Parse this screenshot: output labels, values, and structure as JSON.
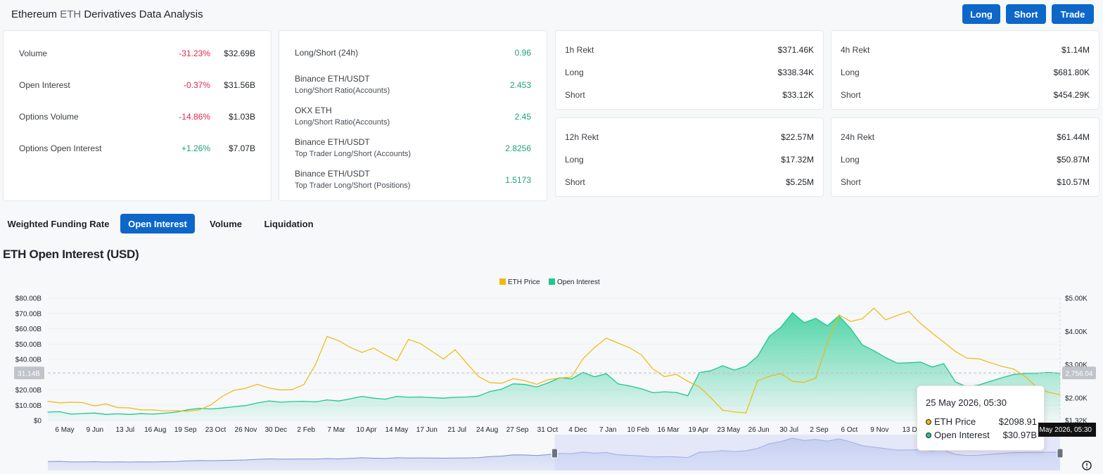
{
  "header": {
    "title_prefix": "Ethereum",
    "title_symbol": "ETH",
    "title_suffix": "Derivatives Data Analysis",
    "buttons": {
      "long": "Long",
      "short": "Short",
      "trade": "Trade"
    }
  },
  "summary": [
    {
      "label": "Volume",
      "change": "-31.23%",
      "value": "$32.69B",
      "direction": "neg"
    },
    {
      "label": "Open Interest",
      "change": "-0.37%",
      "value": "$31.56B",
      "direction": "neg"
    },
    {
      "label": "Options Volume",
      "change": "-14.86%",
      "value": "$1.03B",
      "direction": "neg"
    },
    {
      "label": "Options Open Interest",
      "change": "+1.26%",
      "value": "$7.07B",
      "direction": "pos"
    }
  ],
  "long_short": {
    "top_label": "Long/Short (24h)",
    "top_value": "0.96",
    "rows": [
      {
        "line1": "Binance ETH/USDT",
        "line2": "Long/Short Ratio(Accounts)",
        "value": "2.453"
      },
      {
        "line1": "OKX ETH",
        "line2": "Long/Short Ratio(Accounts)",
        "value": "2.45"
      },
      {
        "line1": "Binance ETH/USDT",
        "line2": "Top Trader Long/Short (Accounts)",
        "value": "2.8256"
      },
      {
        "line1": "Binance ETH/USDT",
        "line2": "Top Trader Long/Short (Positions)",
        "value": "1.5173"
      }
    ]
  },
  "rekt": {
    "h1": {
      "title": "1h Rekt",
      "total": "$371.46K",
      "long_label": "Long",
      "long": "$338.34K",
      "short_label": "Short",
      "short": "$33.12K"
    },
    "h4": {
      "title": "4h Rekt",
      "total": "$1.14M",
      "long_label": "Long",
      "long": "$681.80K",
      "short_label": "Short",
      "short": "$454.29K"
    },
    "h12": {
      "title": "12h Rekt",
      "total": "$22.57M",
      "long_label": "Long",
      "long": "$17.32M",
      "short_label": "Short",
      "short": "$5.25M"
    },
    "h24": {
      "title": "24h Rekt",
      "total": "$61.44M",
      "long_label": "Long",
      "long": "$50.87M",
      "short_label": "Short",
      "short": "$10.57M"
    }
  },
  "tabs": [
    "Weighted Funding Rate",
    "Open Interest",
    "Volume",
    "Liquidation"
  ],
  "active_tab": "Open Interest",
  "chart_heading": "ETH Open Interest (USD)",
  "chart_data": {
    "type": "area",
    "title": "ETH Open Interest (USD)",
    "legend": [
      "ETH Price",
      "Open Interest"
    ],
    "legend_position": "top-center",
    "colors": {
      "eth_price": "#f0b90b",
      "open_interest": "#1cc98d"
    },
    "x_ticks": [
      "6 May",
      "9 Jun",
      "13 Jul",
      "16 Aug",
      "19 Sep",
      "23 Oct",
      "26 Nov",
      "30 Dec",
      "2 Feb",
      "7 Mar",
      "10 Apr",
      "14 May",
      "17 Jun",
      "21 Jul",
      "24 Aug",
      "27 Sep",
      "31 Oct",
      "4 Dec",
      "7 Jan",
      "10 Feb",
      "16 Mar",
      "19 Apr",
      "23 May",
      "26 Jun",
      "30 Jul",
      "2 Sep",
      "6 Oct",
      "9 Nov",
      "13 D"
    ],
    "y_left_ticks": [
      "$0",
      "$10.00B",
      "$20.00B",
      "$30.00B",
      "$40.00B",
      "$50.00B",
      "$60.00B",
      "$70.00B",
      "$80.00B"
    ],
    "y_right_ticks": [
      "$1.32K",
      "$2.00K",
      "$3.00K",
      "$4.00K",
      "$5.00K"
    ],
    "ylim_left": [
      0,
      80
    ],
    "ylim_right": [
      1320,
      5000
    ],
    "crosshair_left_label": "31.14B",
    "crosshair_right_label": "2,756.04",
    "crosshair_x_label": "May 2026, 05:30",
    "series": [
      {
        "name": "Open Interest",
        "unit": "B USD",
        "values": [
          5.5,
          5.8,
          4.2,
          4.6,
          4.9,
          4.0,
          4.4,
          4.0,
          4.5,
          4.2,
          4.8,
          5.5,
          7.0,
          8.0,
          7.6,
          8.2,
          9.0,
          9.8,
          11.5,
          12.8,
          12.0,
          12.4,
          12.6,
          12.2,
          13.5,
          12.8,
          14.2,
          15.8,
          14.6,
          14.0,
          15.8,
          15.2,
          15.4,
          15.0,
          14.6,
          15.2,
          15.4,
          16.0,
          19.0,
          20.5,
          24.0,
          23.6,
          22.0,
          24.6,
          28.0,
          27.2,
          31.5,
          28.6,
          30.6,
          24.0,
          22.6,
          20.8,
          18.2,
          18.8,
          18.4,
          16.2,
          31.4,
          32.6,
          35.8,
          33.0,
          35.5,
          42.0,
          55.0,
          61.0,
          70.5,
          64.0,
          66.8,
          62.0,
          68.5,
          60.2,
          49.5,
          45.6,
          41.2,
          37.5,
          37.8,
          38.2,
          35.0,
          37.2,
          25.3,
          22.0,
          23.2,
          25.6,
          28.0,
          30.1,
          30.8,
          31.0,
          31.5,
          30.9
        ]
      },
      {
        "name": "ETH Price",
        "unit": "USD",
        "values": [
          1900,
          1850,
          1870,
          1860,
          1760,
          1820,
          1710,
          1700,
          1640,
          1640,
          1610,
          1620,
          1600,
          1640,
          1790,
          2050,
          2230,
          2290,
          2410,
          2300,
          2240,
          2250,
          2400,
          3000,
          3850,
          3720,
          3520,
          3370,
          3500,
          3300,
          3120,
          3760,
          3640,
          3410,
          3170,
          3450,
          3050,
          2650,
          2460,
          2440,
          2580,
          2520,
          2410,
          2550,
          2600,
          2630,
          3180,
          3520,
          3800,
          3650,
          3510,
          3300,
          2870,
          2640,
          2710,
          2500,
          2330,
          2000,
          1630,
          1580,
          1550,
          2520,
          2650,
          2730,
          2500,
          2470,
          2600,
          3650,
          4500,
          4300,
          4380,
          4700,
          4350,
          4480,
          4600,
          4240,
          3950,
          3680,
          3400,
          3200,
          3180,
          3060,
          2950,
          2870,
          2640,
          2320,
          2170,
          2099
        ]
      }
    ],
    "navigator": {
      "selection_start": 0.5,
      "selection_end": 1.0
    }
  },
  "tooltip": {
    "date": "25 May 2026, 05:30",
    "rows": [
      {
        "label": "ETH Price",
        "value": "$2098.91",
        "color": "#f0b90b"
      },
      {
        "label": "Open Interest",
        "value": "$30.97B",
        "color": "#1cc98d"
      }
    ]
  }
}
